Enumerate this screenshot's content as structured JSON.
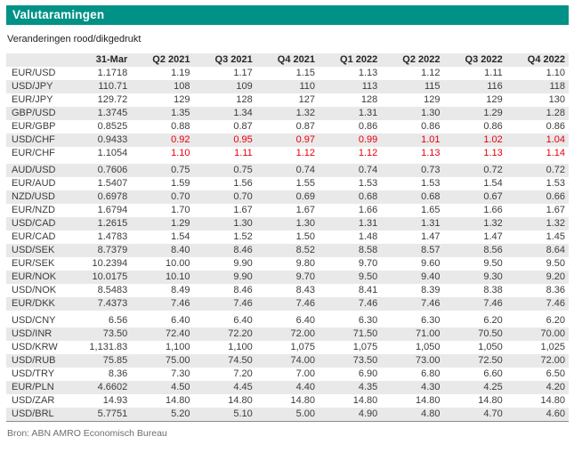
{
  "header": {
    "title": "Valutaramingen",
    "subtitle": "Veranderingen rood/dikgedrukt"
  },
  "footer": {
    "source": "Bron: ABN AMRO Economisch Bureau"
  },
  "colors": {
    "accent_teal": "#009286",
    "row_stripe": "#e9e9e9",
    "highlight_red": "#e8000d"
  },
  "chart_data": {
    "type": "table",
    "title": "Valutaramingen",
    "note": "Veranderingen rood/dikgedrukt",
    "source": "Bron: ABN AMRO Economisch Bureau",
    "columns": [
      "",
      "31-Mar",
      "Q2 2021",
      "Q3 2021",
      "Q4 2021",
      "Q1 2022",
      "Q2 2022",
      "Q3 2022",
      "Q4 2022"
    ],
    "group_gap_after": [
      "EUR/CHF",
      "EUR/DKK"
    ],
    "rows": [
      {
        "pair": "EUR/USD",
        "highlight": false,
        "values": [
          "1.1718",
          "1.19",
          "1.17",
          "1.15",
          "1.13",
          "1.12",
          "1.11",
          "1.10"
        ]
      },
      {
        "pair": "USD/JPY",
        "highlight": false,
        "values": [
          "110.71",
          "108",
          "109",
          "110",
          "113",
          "115",
          "116",
          "118"
        ]
      },
      {
        "pair": "EUR/JPY",
        "highlight": false,
        "values": [
          "129.72",
          "129",
          "128",
          "127",
          "128",
          "129",
          "129",
          "130"
        ]
      },
      {
        "pair": "GBP/USD",
        "highlight": false,
        "values": [
          "1.3745",
          "1.35",
          "1.34",
          "1.32",
          "1.31",
          "1.30",
          "1.29",
          "1.28"
        ]
      },
      {
        "pair": "EUR/GBP",
        "highlight": false,
        "values": [
          "0.8525",
          "0.88",
          "0.87",
          "0.87",
          "0.86",
          "0.86",
          "0.86",
          "0.86"
        ]
      },
      {
        "pair": "USD/CHF",
        "highlight": true,
        "values": [
          "0.9433",
          "0.92",
          "0.95",
          "0.97",
          "0.99",
          "1.01",
          "1.02",
          "1.04"
        ]
      },
      {
        "pair": "EUR/CHF",
        "highlight": true,
        "values": [
          "1.1054",
          "1.10",
          "1.11",
          "1.12",
          "1.12",
          "1.13",
          "1.13",
          "1.14"
        ]
      },
      {
        "pair": "AUD/USD",
        "highlight": false,
        "values": [
          "0.7606",
          "0.75",
          "0.75",
          "0.74",
          "0.74",
          "0.73",
          "0.72",
          "0.72"
        ]
      },
      {
        "pair": "EUR/AUD",
        "highlight": false,
        "values": [
          "1.5407",
          "1.59",
          "1.56",
          "1.55",
          "1.53",
          "1.53",
          "1.54",
          "1.53"
        ]
      },
      {
        "pair": "NZD/USD",
        "highlight": false,
        "values": [
          "0.6978",
          "0.70",
          "0.70",
          "0.69",
          "0.68",
          "0.68",
          "0.67",
          "0.66"
        ]
      },
      {
        "pair": "EUR/NZD",
        "highlight": false,
        "values": [
          "1.6794",
          "1.70",
          "1.67",
          "1.67",
          "1.66",
          "1.65",
          "1.66",
          "1.67"
        ]
      },
      {
        "pair": "USD/CAD",
        "highlight": false,
        "values": [
          "1.2615",
          "1.29",
          "1.30",
          "1.30",
          "1.31",
          "1.31",
          "1.32",
          "1.32"
        ]
      },
      {
        "pair": "EUR/CAD",
        "highlight": false,
        "values": [
          "1.4783",
          "1.54",
          "1.52",
          "1.50",
          "1.48",
          "1.47",
          "1.47",
          "1.45"
        ]
      },
      {
        "pair": "USD/SEK",
        "highlight": false,
        "values": [
          "8.7379",
          "8.40",
          "8.46",
          "8.52",
          "8.58",
          "8.57",
          "8.56",
          "8.64"
        ]
      },
      {
        "pair": "EUR/SEK",
        "highlight": false,
        "values": [
          "10.2394",
          "10.00",
          "9.90",
          "9.80",
          "9.70",
          "9.60",
          "9.50",
          "9.50"
        ]
      },
      {
        "pair": "EUR/NOK",
        "highlight": false,
        "values": [
          "10.0175",
          "10.10",
          "9.90",
          "9.70",
          "9.50",
          "9.40",
          "9.30",
          "9.20"
        ]
      },
      {
        "pair": "USD/NOK",
        "highlight": false,
        "values": [
          "8.5483",
          "8.49",
          "8.46",
          "8.43",
          "8.41",
          "8.39",
          "8.38",
          "8.36"
        ]
      },
      {
        "pair": "EUR/DKK",
        "highlight": false,
        "values": [
          "7.4373",
          "7.46",
          "7.46",
          "7.46",
          "7.46",
          "7.46",
          "7.46",
          "7.46"
        ]
      },
      {
        "pair": "USD/CNY",
        "highlight": false,
        "values": [
          "6.56",
          "6.40",
          "6.40",
          "6.40",
          "6.30",
          "6.30",
          "6.20",
          "6.20"
        ]
      },
      {
        "pair": "USD/INR",
        "highlight": false,
        "values": [
          "73.50",
          "72.40",
          "72.20",
          "72.00",
          "71.50",
          "71.00",
          "70.50",
          "70.00"
        ]
      },
      {
        "pair": "USD/KRW",
        "highlight": false,
        "values": [
          "1,131.83",
          "1,100",
          "1,100",
          "1,075",
          "1,075",
          "1,050",
          "1,050",
          "1,025"
        ]
      },
      {
        "pair": "USD/RUB",
        "highlight": false,
        "values": [
          "75.85",
          "75.00",
          "74.50",
          "74.00",
          "73.50",
          "73.00",
          "72.50",
          "72.00"
        ]
      },
      {
        "pair": "USD/TRY",
        "highlight": false,
        "values": [
          "8.36",
          "7.30",
          "7.20",
          "7.00",
          "6.90",
          "6.80",
          "6.60",
          "6.50"
        ]
      },
      {
        "pair": "EUR/PLN",
        "highlight": false,
        "values": [
          "4.6602",
          "4.50",
          "4.45",
          "4.40",
          "4.35",
          "4.30",
          "4.25",
          "4.20"
        ]
      },
      {
        "pair": "USD/ZAR",
        "highlight": false,
        "values": [
          "14.93",
          "14.80",
          "14.80",
          "14.80",
          "14.80",
          "14.80",
          "14.80",
          "14.80"
        ]
      },
      {
        "pair": "USD/BRL",
        "highlight": false,
        "values": [
          "5.7751",
          "5.20",
          "5.10",
          "5.00",
          "4.90",
          "4.80",
          "4.70",
          "4.60"
        ]
      }
    ]
  }
}
